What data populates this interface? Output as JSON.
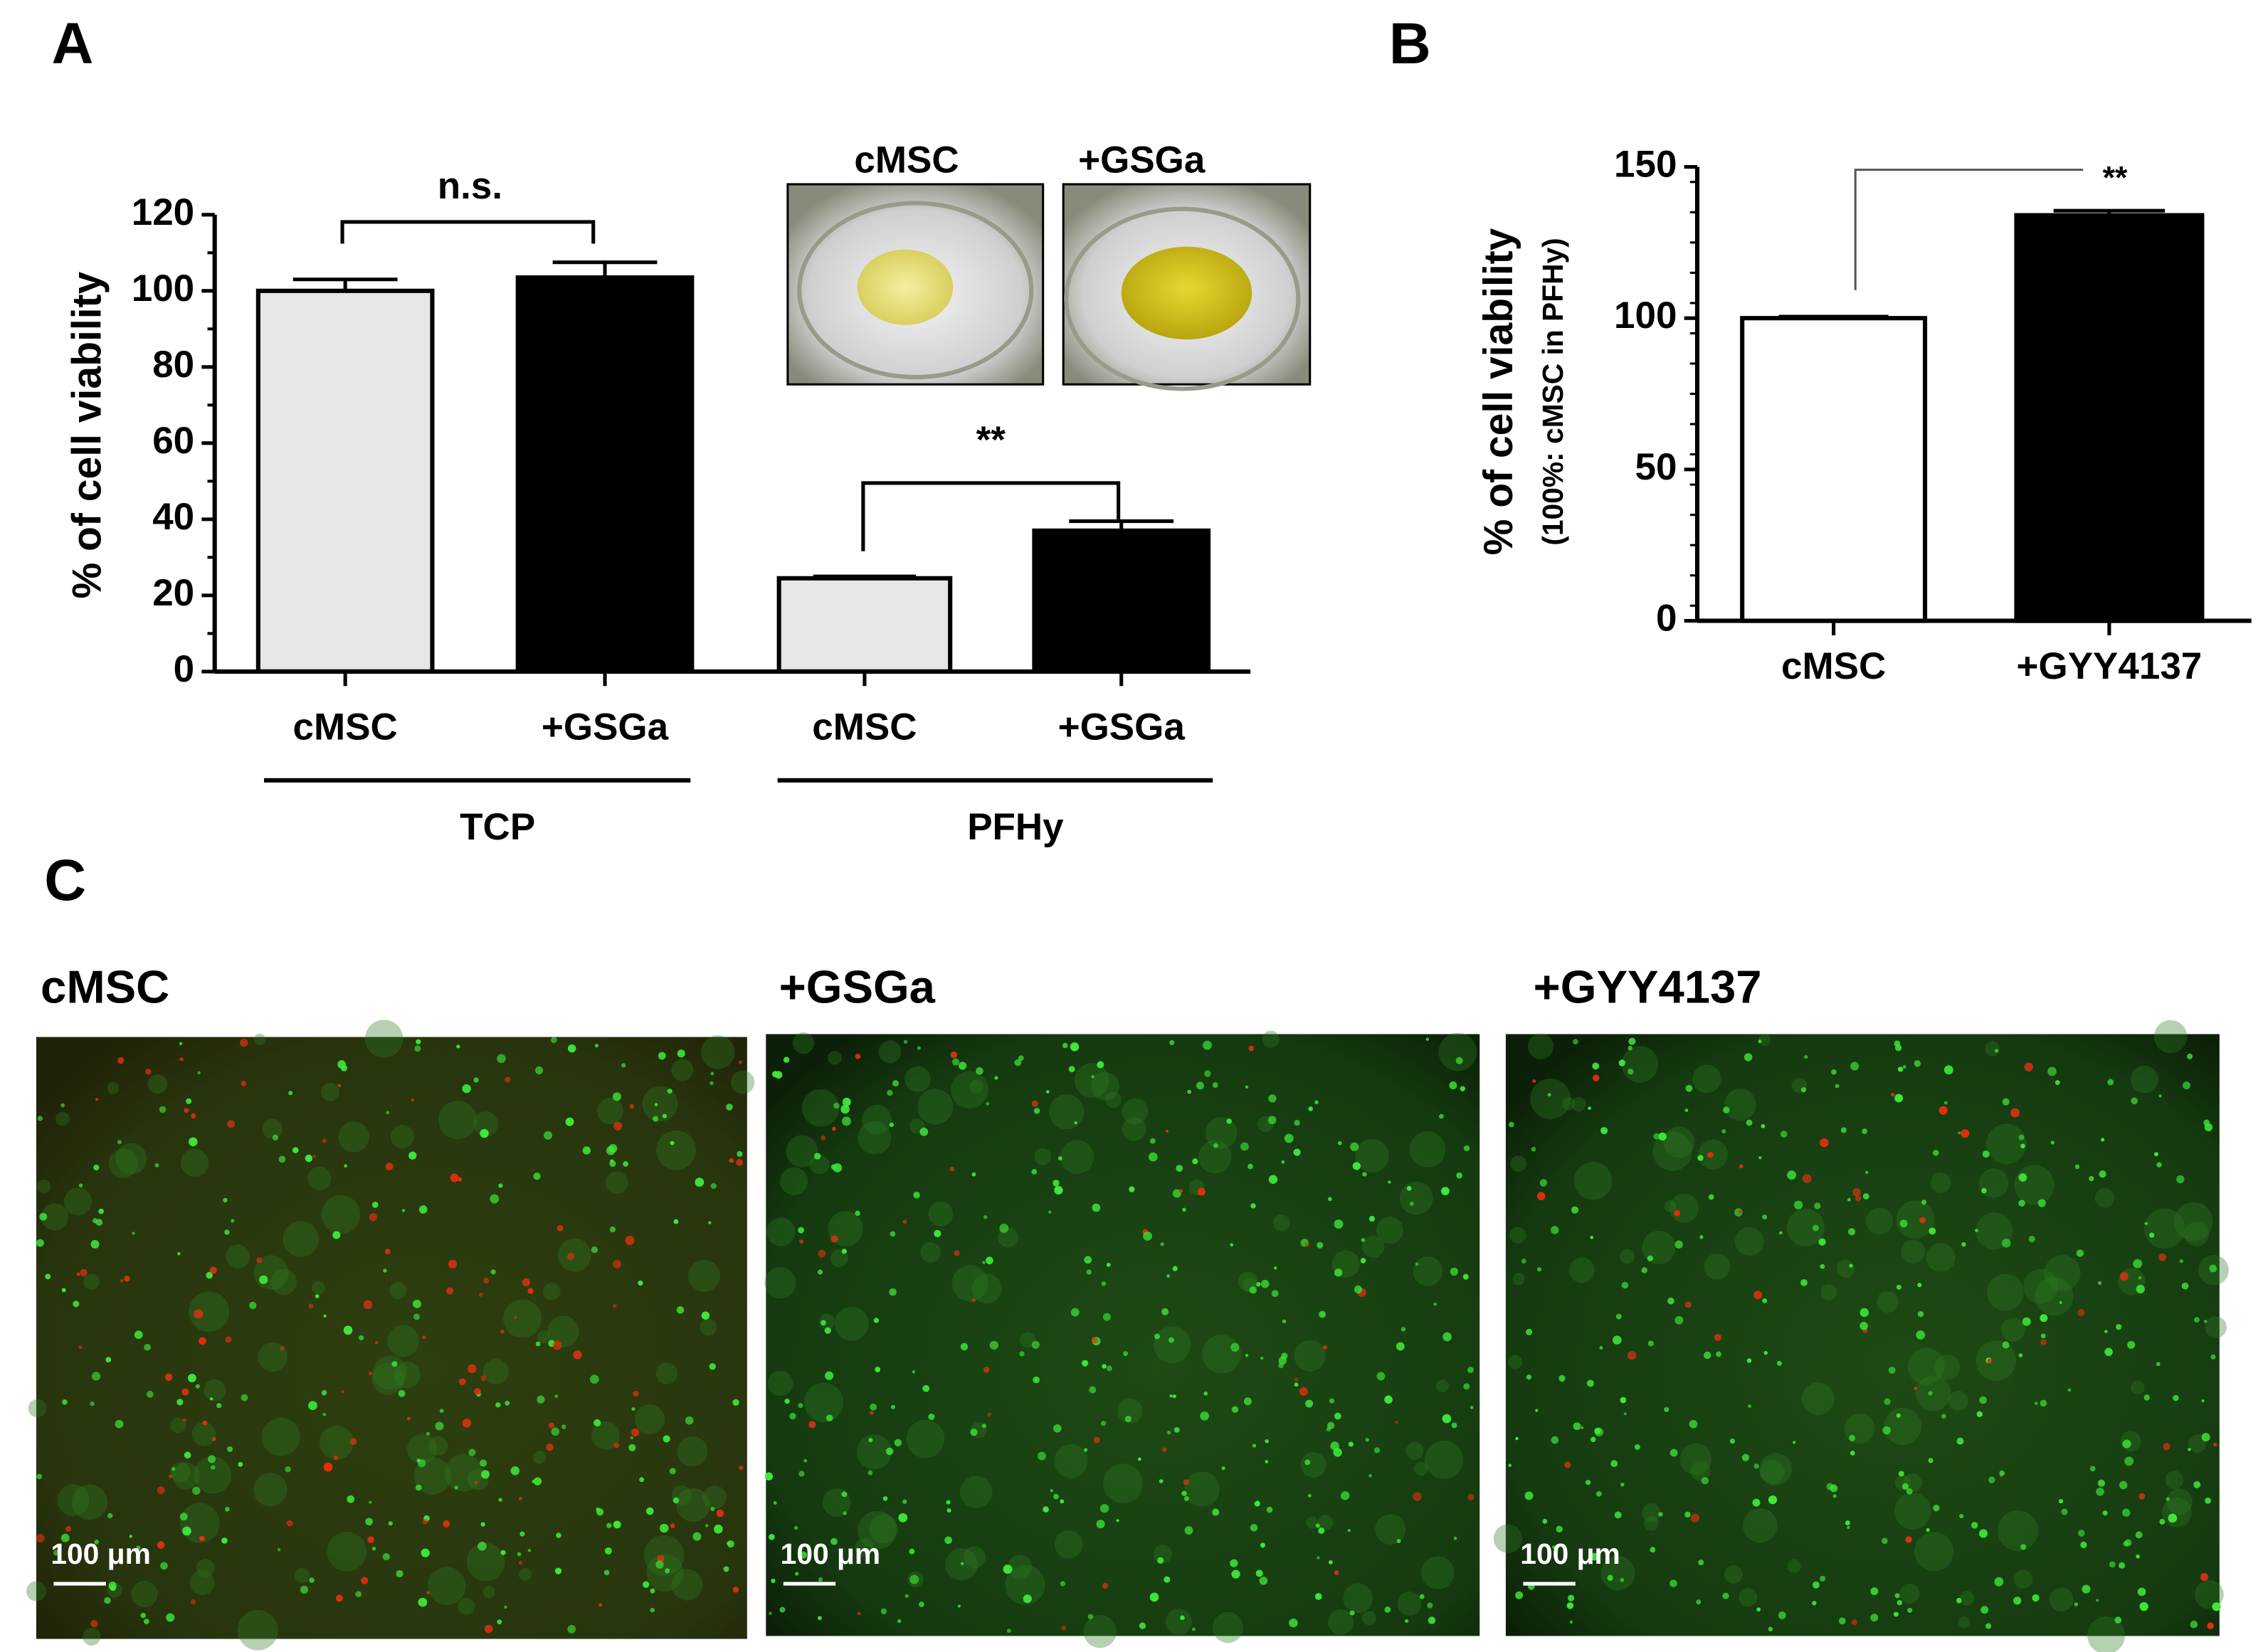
{
  "panel_labels": [
    "A",
    "B",
    "C"
  ],
  "chart_data": [
    {
      "type": "bar",
      "ylabel": "% of cell viability",
      "categories": [
        "cMSC",
        "+GSGa",
        "cMSC",
        "+GSGa"
      ],
      "groups": [
        "TCP",
        "PFHy"
      ],
      "values": [
        100,
        103.5,
        24.5,
        37
      ],
      "errors": [
        3,
        4,
        0.5,
        2.5
      ],
      "colors": [
        "#e6e6e6",
        "#000000",
        "#e6e6e6",
        "#000000"
      ],
      "ylim": [
        0,
        120
      ],
      "yticks": [
        0,
        20,
        40,
        60,
        80,
        100,
        120
      ],
      "significance": [
        "n.s.",
        "**"
      ]
    },
    {
      "type": "bar",
      "ylabel": "% of cell viability",
      "ylabel_sub": "(100%: cMSC in PFHy)",
      "categories": [
        "cMSC",
        "+GYY4137"
      ],
      "values": [
        100,
        134
      ],
      "errors": [
        0.5,
        1.5
      ],
      "colors": [
        "#ffffff",
        "#000000"
      ],
      "ylim": [
        0,
        150
      ],
      "yticks": [
        0,
        50,
        100,
        150
      ],
      "significance": [
        "**"
      ]
    }
  ],
  "inset_labels": [
    "cMSC",
    "+GSGa"
  ],
  "micrographs": {
    "labels": [
      "cMSC",
      "+GSGa",
      "+GYY4137"
    ],
    "scale_bars": [
      "100 μm",
      "100 μm",
      "100 μm"
    ]
  }
}
